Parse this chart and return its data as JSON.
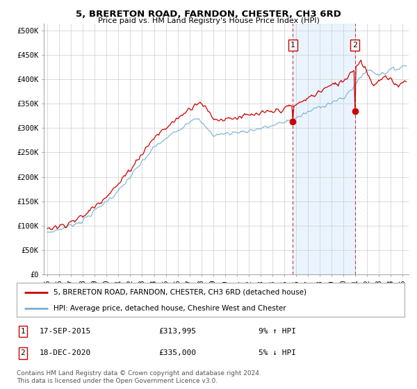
{
  "title": "5, BRERETON ROAD, FARNDON, CHESTER, CH3 6RD",
  "subtitle": "Price paid vs. HM Land Registry's House Price Index (HPI)",
  "ylabel_ticks": [
    "£0",
    "£50K",
    "£100K",
    "£150K",
    "£200K",
    "£250K",
    "£300K",
    "£350K",
    "£400K",
    "£450K",
    "£500K"
  ],
  "ytick_values": [
    0,
    50000,
    100000,
    150000,
    200000,
    250000,
    300000,
    350000,
    400000,
    450000,
    500000
  ],
  "ylim": [
    0,
    515000
  ],
  "xlim_start": 1994.7,
  "xlim_end": 2025.5,
  "hpi_color": "#7ab0d4",
  "price_color": "#cc0000",
  "marker1_x": 2015.72,
  "marker1_y": 313995,
  "marker2_x": 2020.97,
  "marker2_y": 335000,
  "marker1_label": "1",
  "marker2_label": "2",
  "annotation1_date": "17-SEP-2015",
  "annotation1_price": "£313,995",
  "annotation1_hpi": "9% ↑ HPI",
  "annotation2_date": "18-DEC-2020",
  "annotation2_price": "£335,000",
  "annotation2_hpi": "5% ↓ HPI",
  "legend_line1": "5, BRERETON ROAD, FARNDON, CHESTER, CH3 6RD (detached house)",
  "legend_line2": "HPI: Average price, detached house, Cheshire West and Chester",
  "footer": "Contains HM Land Registry data © Crown copyright and database right 2024.\nThis data is licensed under the Open Government Licence v3.0.",
  "vline1_x": 2015.72,
  "vline2_x": 2020.97,
  "background_color": "#ffffff",
  "plot_bg_color": "#ffffff",
  "grid_color": "#cccccc",
  "shade_color": "#ddeeff"
}
